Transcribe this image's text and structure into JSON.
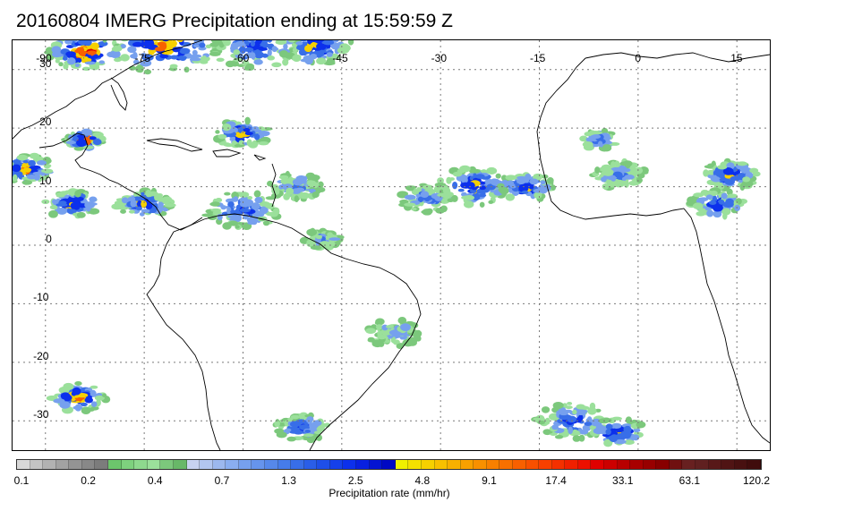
{
  "title": "20160804 IMERG Precipitation ending at 15:59:59 Z",
  "map": {
    "projection": "equirectangular",
    "lon_range": [
      -95,
      20
    ],
    "lat_range": [
      -35,
      35
    ],
    "lon_gridlines": [
      -90,
      -75,
      -60,
      -45,
      -30,
      -15,
      0,
      15
    ],
    "lat_gridlines": [
      30,
      20,
      10,
      0,
      -10,
      -20,
      -30
    ],
    "lon_labels": [
      "-90",
      "-75",
      "-60",
      "-45",
      "-30",
      "-15",
      "0",
      "15"
    ],
    "lat_labels": [
      "30",
      "20",
      "10",
      "0",
      "-10",
      "-20",
      "-30"
    ],
    "precip_clusters": [
      {
        "lon": -84,
        "lat": 33,
        "spread": 4,
        "peak": 7
      },
      {
        "lon": -72,
        "lat": 34,
        "spread": 6,
        "peak": 6
      },
      {
        "lon": -58,
        "lat": 34,
        "spread": 5,
        "peak": 4
      },
      {
        "lon": -49,
        "lat": 34,
        "spread": 4,
        "peak": 5
      },
      {
        "lon": -84,
        "lat": 18,
        "spread": 2,
        "peak": 7
      },
      {
        "lon": -93,
        "lat": 13,
        "spread": 3,
        "peak": 6
      },
      {
        "lon": -86,
        "lat": 7,
        "spread": 3,
        "peak": 5
      },
      {
        "lon": -75,
        "lat": 7,
        "spread": 3,
        "peak": 5
      },
      {
        "lon": -60,
        "lat": 19,
        "spread": 3,
        "peak": 5
      },
      {
        "lon": -60,
        "lat": 6,
        "spread": 4,
        "peak": 4
      },
      {
        "lon": -52,
        "lat": 10,
        "spread": 3,
        "peak": 3
      },
      {
        "lon": -32,
        "lat": 8,
        "spread": 3,
        "peak": 3
      },
      {
        "lon": -25,
        "lat": 10,
        "spread": 4,
        "peak": 5
      },
      {
        "lon": -17,
        "lat": 10,
        "spread": 3,
        "peak": 5
      },
      {
        "lon": -6,
        "lat": 18,
        "spread": 2,
        "peak": 4
      },
      {
        "lon": -3,
        "lat": 12,
        "spread": 3,
        "peak": 3
      },
      {
        "lon": 14,
        "lat": 12,
        "spread": 3,
        "peak": 5
      },
      {
        "lon": 12,
        "lat": 7,
        "spread": 3,
        "peak": 4
      },
      {
        "lon": -85,
        "lat": -26,
        "spread": 3,
        "peak": 6
      },
      {
        "lon": -51,
        "lat": -31,
        "spread": 3,
        "peak": 4
      },
      {
        "lon": -10,
        "lat": -30,
        "spread": 4,
        "peak": 4
      },
      {
        "lon": -3,
        "lat": -32,
        "spread": 3,
        "peak": 5
      },
      {
        "lon": -37,
        "lat": -15,
        "spread": 3,
        "peak": 2
      },
      {
        "lon": -48,
        "lat": 1,
        "spread": 2,
        "peak": 3
      }
    ]
  },
  "colorbar": {
    "colors": [
      "#d8d8d8",
      "#c4c4c4",
      "#b2b2b2",
      "#a2a2a2",
      "#949494",
      "#888888",
      "#7c7c7c",
      "#6cc66c",
      "#7ed17e",
      "#8ed98e",
      "#9be09b",
      "#7cc87c",
      "#68b868",
      "#c8d2f0",
      "#b2c6f0",
      "#9cb8ee",
      "#8aaef0",
      "#76a0ee",
      "#6694ec",
      "#5688ea",
      "#467cea",
      "#386ee8",
      "#2a5ee8",
      "#1e4fe8",
      "#1540ea",
      "#0c30ec",
      "#0820e0",
      "#0414d2",
      "#0008c4",
      "#f0f000",
      "#f4e000",
      "#f6d000",
      "#f8c000",
      "#f8b000",
      "#f8a000",
      "#f89000",
      "#f88000",
      "#f87000",
      "#f86000",
      "#f85000",
      "#f84000",
      "#f43000",
      "#f02000",
      "#ec1000",
      "#e00000",
      "#cc0000",
      "#b80000",
      "#a80000",
      "#980000",
      "#880000",
      "#701010",
      "#682020",
      "#602020",
      "#581818",
      "#501414",
      "#481010",
      "#400c0c"
    ],
    "tick_labels": [
      "0.1",
      "0.2",
      "0.4",
      "0.7",
      "1.3",
      "2.5",
      "4.8",
      "9.1",
      "17.4",
      "33.1",
      "63.1",
      "120.2"
    ],
    "label": "Precipitation rate (mm/hr)"
  }
}
